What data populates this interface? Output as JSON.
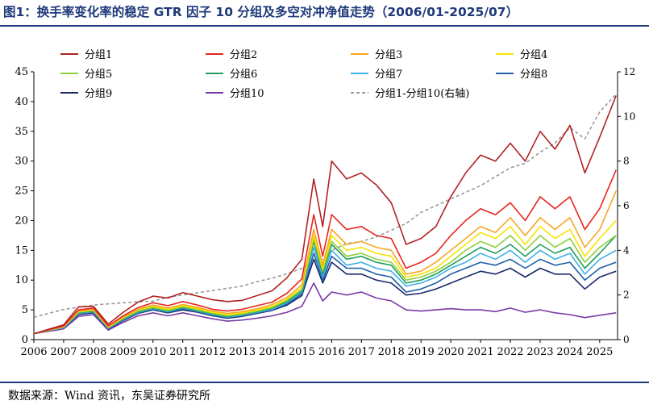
{
  "figure": {
    "title": "图1：换手率变化率的稳定 GTR 因子 10 分组及多空对冲净值走势（2006/01-2025/07）",
    "source": "数据来源：Wind 资讯，东吴证券研究所"
  },
  "chart_data": {
    "type": "line",
    "title": "",
    "xlabel": "",
    "ylabel": "",
    "x_ticks": [
      "2006",
      "2007",
      "2008",
      "2009",
      "2010",
      "2011",
      "2012",
      "2013",
      "2014",
      "2015",
      "2016",
      "2017",
      "2018",
      "2019",
      "2020",
      "2021",
      "2022",
      "2023",
      "2024",
      "2025"
    ],
    "ylim_left": [
      0,
      45
    ],
    "yticks_left": [
      0,
      5,
      10,
      15,
      20,
      25,
      30,
      35,
      40,
      45
    ],
    "ylim_right": [
      0,
      12
    ],
    "yticks_right": [
      0,
      2,
      4,
      6,
      8,
      10,
      12
    ],
    "legend_position": "top",
    "grid": false,
    "x": [
      2006.0,
      2007.0,
      2007.5,
      2008.0,
      2008.5,
      2009.0,
      2009.5,
      2010.0,
      2010.5,
      2011.0,
      2011.5,
      2012.0,
      2012.5,
      2013.0,
      2013.5,
      2014.0,
      2014.5,
      2015.0,
      2015.4,
      2015.7,
      2016.0,
      2016.5,
      2017.0,
      2017.5,
      2018.0,
      2018.5,
      2019.0,
      2019.5,
      2020.0,
      2020.5,
      2021.0,
      2021.5,
      2022.0,
      2022.5,
      2023.0,
      2023.5,
      2024.0,
      2024.5,
      2025.0,
      2025.55
    ],
    "series": [
      {
        "name": "分组1",
        "axis": "left",
        "color": "#b22222",
        "dash": false,
        "values": [
          1.0,
          2.5,
          5.5,
          5.6,
          2.6,
          4.6,
          6.3,
          7.3,
          7.0,
          7.9,
          7.3,
          6.7,
          6.4,
          6.6,
          7.4,
          8.2,
          10.4,
          13.5,
          27.0,
          19.0,
          30.0,
          27.0,
          28.0,
          26.0,
          23.0,
          16.0,
          17.0,
          19.0,
          24.0,
          28.0,
          31.0,
          30.0,
          33.0,
          30.0,
          35.0,
          32.0,
          36.0,
          28.0,
          34.0,
          41.0
        ]
      },
      {
        "name": "分组2",
        "axis": "left",
        "color": "#e8251f",
        "dash": false,
        "values": [
          1.0,
          2.3,
          5.0,
          5.3,
          2.3,
          4.0,
          5.4,
          6.2,
          5.7,
          6.4,
          5.8,
          5.1,
          4.8,
          5.1,
          5.7,
          6.3,
          7.8,
          10.2,
          21.0,
          14.0,
          21.0,
          18.5,
          19.0,
          17.5,
          17.0,
          12.0,
          13.0,
          14.5,
          17.5,
          20.0,
          22.0,
          21.0,
          23.0,
          20.0,
          24.0,
          22.0,
          24.0,
          18.5,
          22.0,
          28.5
        ]
      },
      {
        "name": "分组3",
        "axis": "left",
        "color": "#f5a623",
        "dash": false,
        "values": [
          1.0,
          2.2,
          4.8,
          5.1,
          2.2,
          3.8,
          5.1,
          5.8,
          5.3,
          5.9,
          5.4,
          4.8,
          4.4,
          4.7,
          5.2,
          5.9,
          7.1,
          9.2,
          18.5,
          12.5,
          18.5,
          16.0,
          16.5,
          15.5,
          15.0,
          11.0,
          11.5,
          13.0,
          15.0,
          17.0,
          19.0,
          18.0,
          20.5,
          17.5,
          20.5,
          18.5,
          20.5,
          15.5,
          18.5,
          25.0
        ]
      },
      {
        "name": "分组4",
        "axis": "left",
        "color": "#f5e300",
        "dash": false,
        "values": [
          1.0,
          2.2,
          4.7,
          5.0,
          2.1,
          3.7,
          5.0,
          5.6,
          5.1,
          5.7,
          5.2,
          4.6,
          4.2,
          4.5,
          5.0,
          5.6,
          6.8,
          8.8,
          17.5,
          12.0,
          17.5,
          15.0,
          15.5,
          14.5,
          14.0,
          10.5,
          11.0,
          12.0,
          14.0,
          16.0,
          18.0,
          17.0,
          19.0,
          16.0,
          19.0,
          17.0,
          18.5,
          14.0,
          17.0,
          20.0
        ]
      },
      {
        "name": "分组5",
        "axis": "left",
        "color": "#8ccf3c",
        "dash": false,
        "values": [
          1.0,
          2.1,
          4.6,
          4.9,
          2.0,
          3.6,
          4.8,
          5.4,
          4.9,
          5.5,
          5.0,
          4.4,
          4.0,
          4.3,
          4.8,
          5.4,
          6.6,
          8.4,
          17.0,
          11.5,
          16.5,
          14.0,
          14.5,
          13.5,
          13.0,
          10.0,
          10.5,
          11.5,
          13.0,
          15.0,
          16.5,
          15.5,
          17.5,
          15.0,
          17.5,
          15.5,
          17.0,
          13.0,
          15.5,
          17.5
        ]
      },
      {
        "name": "分组6",
        "axis": "left",
        "color": "#1e9e5a",
        "dash": false,
        "values": [
          1.0,
          2.1,
          4.5,
          4.8,
          2.0,
          3.5,
          4.7,
          5.3,
          4.8,
          5.4,
          4.9,
          4.3,
          3.9,
          4.2,
          4.7,
          5.3,
          6.4,
          8.2,
          16.5,
          11.0,
          16.0,
          13.5,
          14.0,
          13.0,
          12.5,
          9.5,
          10.0,
          11.0,
          12.5,
          14.0,
          15.5,
          14.5,
          16.0,
          14.0,
          16.0,
          14.5,
          15.5,
          12.0,
          14.5,
          17.5
        ]
      },
      {
        "name": "分组7",
        "axis": "left",
        "color": "#3fb0e8",
        "dash": false,
        "values": [
          1.0,
          2.0,
          4.4,
          4.7,
          1.9,
          3.4,
          4.6,
          5.2,
          4.7,
          5.3,
          4.8,
          4.2,
          3.8,
          4.1,
          4.6,
          5.1,
          6.2,
          8.0,
          15.5,
          10.5,
          15.0,
          12.5,
          13.0,
          12.0,
          11.5,
          9.0,
          9.5,
          10.5,
          12.0,
          13.0,
          14.5,
          13.5,
          15.0,
          13.0,
          15.0,
          13.5,
          14.5,
          11.0,
          13.5,
          15.0
        ]
      },
      {
        "name": "分组8",
        "axis": "left",
        "color": "#1f5fa8",
        "dash": false,
        "values": [
          1.0,
          2.0,
          4.3,
          4.6,
          1.9,
          3.3,
          4.5,
          5.1,
          4.6,
          5.2,
          4.7,
          4.1,
          3.7,
          4.0,
          4.5,
          5.0,
          6.0,
          7.7,
          14.5,
          10.0,
          14.0,
          12.0,
          12.0,
          11.0,
          10.5,
          8.0,
          8.5,
          9.5,
          11.0,
          12.0,
          13.0,
          12.5,
          13.5,
          12.0,
          13.5,
          12.5,
          13.0,
          10.0,
          12.0,
          13.0
        ]
      },
      {
        "name": "分组9",
        "axis": "left",
        "color": "#1a2a6c",
        "dash": false,
        "values": [
          1.0,
          2.0,
          4.2,
          4.5,
          1.8,
          3.2,
          4.4,
          5.0,
          4.5,
          5.0,
          4.6,
          4.0,
          3.6,
          3.9,
          4.4,
          4.9,
          5.8,
          7.4,
          13.5,
          9.5,
          13.0,
          11.0,
          11.0,
          10.0,
          9.5,
          7.5,
          7.8,
          8.5,
          9.5,
          10.5,
          11.5,
          11.0,
          12.0,
          10.5,
          12.0,
          11.0,
          11.0,
          8.5,
          10.5,
          11.5
        ]
      },
      {
        "name": "分组10",
        "axis": "left",
        "color": "#7a3aa5",
        "dash": false,
        "values": [
          1.0,
          1.8,
          3.9,
          4.2,
          1.6,
          2.9,
          4.0,
          4.5,
          4.0,
          4.5,
          4.0,
          3.5,
          3.1,
          3.3,
          3.6,
          4.0,
          4.6,
          5.6,
          9.5,
          6.5,
          8.0,
          7.5,
          8.0,
          7.0,
          6.5,
          5.0,
          4.8,
          5.0,
          5.2,
          5.0,
          5.0,
          4.7,
          5.3,
          4.6,
          5.0,
          4.5,
          4.2,
          3.7,
          4.1,
          4.5
        ]
      },
      {
        "name": "分组1-分组10(右轴)",
        "axis": "right",
        "color": "#999999",
        "dash": true,
        "values": [
          1.0,
          1.35,
          1.45,
          1.55,
          1.6,
          1.65,
          1.7,
          1.72,
          1.9,
          2.0,
          2.1,
          2.2,
          2.3,
          2.4,
          2.6,
          2.75,
          2.95,
          3.2,
          3.5,
          3.6,
          4.0,
          4.3,
          4.4,
          4.6,
          4.9,
          5.2,
          5.7,
          6.0,
          6.3,
          6.6,
          6.9,
          7.3,
          7.7,
          7.9,
          8.4,
          8.8,
          9.5,
          9.0,
          10.2,
          11.0
        ]
      }
    ]
  }
}
